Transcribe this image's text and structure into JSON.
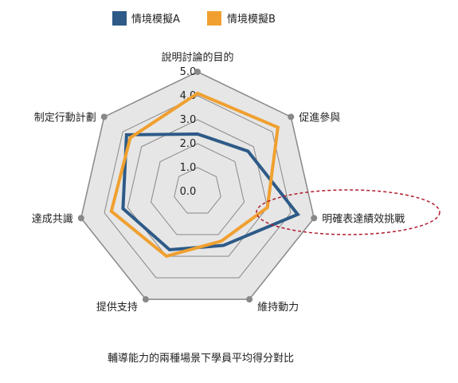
{
  "chart_data": {
    "type": "radar",
    "title": "",
    "caption": "輔導能力的兩種場景下學員平均得分對比",
    "axes": [
      "說明討論的目的",
      "促進參與",
      "明確表達績效挑戰",
      "維持動力",
      "提供支持",
      "達成共識",
      "制定行動計劃"
    ],
    "rlim": [
      0,
      5
    ],
    "ticks": [
      "0.0",
      "1.0",
      "2.0",
      "3.0",
      "4.0",
      "5.0"
    ],
    "legend_position": "top",
    "series": [
      {
        "name": "情境模擬A",
        "color": "#2d5a87",
        "values": [
          2.4,
          2.7,
          4.3,
          2.5,
          2.7,
          3.2,
          3.8
        ]
      },
      {
        "name": "情境模擬B",
        "color": "#f0a030",
        "values": [
          4.1,
          4.3,
          3.0,
          2.3,
          3.0,
          3.7,
          3.6
        ]
      }
    ],
    "highlight": {
      "axis": "明確表達績效挑戰",
      "style": "dashed-ellipse",
      "color": "#b01c2e"
    },
    "colors": {
      "grid_fill": "#e6e6e6",
      "grid_stroke": "#888888",
      "axis_dot": "#888888"
    }
  }
}
